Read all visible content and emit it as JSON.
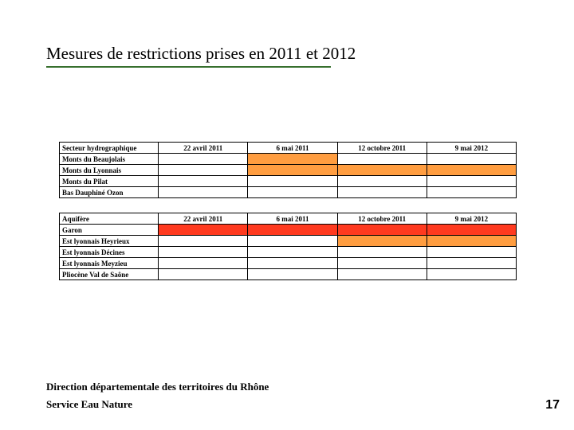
{
  "title": "Mesures de restrictions prises en 2011 et 2012",
  "colors": {
    "white": "#ffffff",
    "orange": "#ff9d40",
    "red": "#ff3a1f",
    "underline": "#376f2e"
  },
  "table1": {
    "header_label": "Secteur hydrographique",
    "dates": [
      "22 avril 2011",
      "6 mai 2011",
      "12 octobre 2011",
      "9 mai 2012"
    ],
    "rows": [
      {
        "label": "Monts du Beaujolais",
        "cells": [
          "white",
          "orange",
          "white",
          "white"
        ]
      },
      {
        "label": "Monts du Lyonnais",
        "cells": [
          "white",
          "orange",
          "orange",
          "orange"
        ]
      },
      {
        "label": "Monts du Pilat",
        "cells": [
          "white",
          "white",
          "white",
          "white"
        ]
      },
      {
        "label": "Bas Dauphiné Ozon",
        "cells": [
          "white",
          "white",
          "white",
          "white"
        ]
      }
    ]
  },
  "table2": {
    "header_label": "Aquifère",
    "dates": [
      "22 avril 2011",
      "6 mai 2011",
      "12 octobre 2011",
      "9 mai 2012"
    ],
    "rows": [
      {
        "label": "Garon",
        "cells": [
          "red",
          "red",
          "red",
          "red"
        ]
      },
      {
        "label": "Est lyonnais Heyrieux",
        "cells": [
          "white",
          "white",
          "orange",
          "orange"
        ]
      },
      {
        "label": "Est lyonnais Décines",
        "cells": [
          "white",
          "white",
          "white",
          "white"
        ]
      },
      {
        "label": "Est lyonnais Meyzieu",
        "cells": [
          "white",
          "white",
          "white",
          "white"
        ]
      },
      {
        "label": "Pliocène Val de Saône",
        "cells": [
          "white",
          "white",
          "white",
          "white"
        ]
      }
    ]
  },
  "footer": {
    "line1": "Direction départementale des territoires du Rhône",
    "line2": "Service Eau Nature"
  },
  "page_number": "17"
}
